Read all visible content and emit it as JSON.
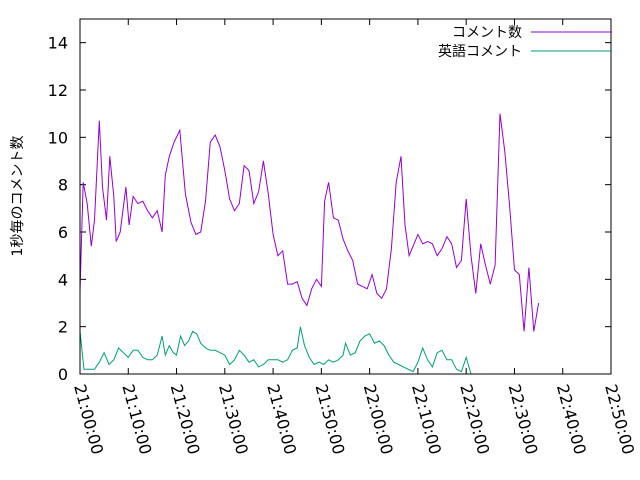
{
  "chart_data": {
    "type": "line",
    "title": "",
    "xlabel": "",
    "ylabel": "1秒毎のコメント数",
    "ylim": [
      0,
      15
    ],
    "yticks": [
      0,
      2,
      4,
      6,
      8,
      10,
      12,
      14
    ],
    "xlim": [
      "21:00:00",
      "22:50:00"
    ],
    "xticks": [
      "21:00:00",
      "21:10:00",
      "21:20:00",
      "21:30:00",
      "21:40:00",
      "21:50:00",
      "22:00:00",
      "22:10:00",
      "22:20:00",
      "22:30:00",
      "22:40:00",
      "22:50:00"
    ],
    "grid": false,
    "legend_position": "top-right",
    "series": [
      {
        "name": "コメント数",
        "color": "#9400d3",
        "points": [
          [
            "21:00:00",
            3.5
          ],
          [
            "21:00:40",
            8.1
          ],
          [
            "21:01:30",
            7.2
          ],
          [
            "21:02:20",
            5.4
          ],
          [
            "21:03:00",
            6.5
          ],
          [
            "21:04:00",
            10.7
          ],
          [
            "21:04:40",
            7.9
          ],
          [
            "21:05:30",
            6.5
          ],
          [
            "21:06:10",
            9.2
          ],
          [
            "21:07:00",
            7.5
          ],
          [
            "21:07:30",
            5.6
          ],
          [
            "21:08:20",
            6.0
          ],
          [
            "21:09:30",
            7.9
          ],
          [
            "21:10:10",
            6.3
          ],
          [
            "21:11:00",
            7.5
          ],
          [
            "21:12:00",
            7.2
          ],
          [
            "21:13:00",
            7.3
          ],
          [
            "21:14:00",
            6.9
          ],
          [
            "21:15:00",
            6.6
          ],
          [
            "21:16:00",
            6.9
          ],
          [
            "21:17:00",
            6.0
          ],
          [
            "21:17:40",
            8.4
          ],
          [
            "21:18:30",
            9.2
          ],
          [
            "21:19:30",
            9.8
          ],
          [
            "21:20:40",
            10.3
          ],
          [
            "21:21:50",
            7.6
          ],
          [
            "21:23:00",
            6.4
          ],
          [
            "21:24:00",
            5.9
          ],
          [
            "21:25:00",
            6.0
          ],
          [
            "21:26:00",
            7.3
          ],
          [
            "21:27:00",
            9.8
          ],
          [
            "21:28:00",
            10.1
          ],
          [
            "21:29:00",
            9.6
          ],
          [
            "21:30:00",
            8.6
          ],
          [
            "21:31:00",
            7.4
          ],
          [
            "21:32:00",
            6.9
          ],
          [
            "21:33:00",
            7.2
          ],
          [
            "21:34:00",
            8.8
          ],
          [
            "21:35:00",
            8.6
          ],
          [
            "21:36:00",
            7.2
          ],
          [
            "21:37:00",
            7.7
          ],
          [
            "21:38:00",
            9.0
          ],
          [
            "21:39:00",
            7.6
          ],
          [
            "21:40:00",
            5.9
          ],
          [
            "21:41:00",
            5.0
          ],
          [
            "21:42:00",
            5.2
          ],
          [
            "21:43:00",
            3.8
          ],
          [
            "21:44:00",
            3.8
          ],
          [
            "21:45:00",
            3.9
          ],
          [
            "21:46:00",
            3.2
          ],
          [
            "21:47:00",
            2.9
          ],
          [
            "21:48:00",
            3.6
          ],
          [
            "21:49:00",
            4.0
          ],
          [
            "21:50:00",
            3.7
          ],
          [
            "21:50:40",
            7.3
          ],
          [
            "21:51:30",
            8.1
          ],
          [
            "21:52:30",
            6.6
          ],
          [
            "21:53:30",
            6.5
          ],
          [
            "21:54:30",
            5.7
          ],
          [
            "21:55:30",
            5.2
          ],
          [
            "21:56:30",
            4.8
          ],
          [
            "21:57:30",
            3.8
          ],
          [
            "21:58:30",
            3.7
          ],
          [
            "21:59:30",
            3.6
          ],
          [
            "22:00:30",
            4.2
          ],
          [
            "22:01:30",
            3.4
          ],
          [
            "22:02:30",
            3.2
          ],
          [
            "22:03:30",
            3.6
          ],
          [
            "22:04:30",
            5.3
          ],
          [
            "22:05:30",
            8.1
          ],
          [
            "22:06:30",
            9.2
          ],
          [
            "22:07:20",
            6.3
          ],
          [
            "22:08:10",
            5.0
          ],
          [
            "22:09:00",
            5.4
          ],
          [
            "22:10:00",
            5.9
          ],
          [
            "22:11:00",
            5.5
          ],
          [
            "22:12:00",
            5.6
          ],
          [
            "22:13:00",
            5.5
          ],
          [
            "22:14:00",
            5.0
          ],
          [
            "22:15:00",
            5.3
          ],
          [
            "22:16:00",
            5.8
          ],
          [
            "22:17:00",
            5.5
          ],
          [
            "22:18:00",
            4.5
          ],
          [
            "22:19:00",
            4.8
          ],
          [
            "22:20:00",
            7.4
          ],
          [
            "22:21:00",
            5.0
          ],
          [
            "22:22:00",
            3.4
          ],
          [
            "22:23:00",
            5.5
          ],
          [
            "22:24:00",
            4.6
          ],
          [
            "22:25:00",
            3.8
          ],
          [
            "22:26:00",
            4.6
          ],
          [
            "22:27:00",
            11.0
          ],
          [
            "22:28:00",
            9.4
          ],
          [
            "22:29:00",
            7.1
          ],
          [
            "22:30:00",
            4.4
          ],
          [
            "22:31:00",
            4.2
          ],
          [
            "22:32:00",
            1.8
          ],
          [
            "22:33:00",
            4.5
          ],
          [
            "22:34:00",
            1.8
          ],
          [
            "22:35:00",
            3.0
          ]
        ]
      },
      {
        "name": "英語コメント",
        "color": "#009e73",
        "points": [
          [
            "21:00:00",
            1.8
          ],
          [
            "21:00:50",
            0.2
          ],
          [
            "21:02:00",
            0.2
          ],
          [
            "21:03:00",
            0.2
          ],
          [
            "21:04:00",
            0.5
          ],
          [
            "21:05:00",
            0.9
          ],
          [
            "21:06:00",
            0.4
          ],
          [
            "21:07:00",
            0.6
          ],
          [
            "21:08:00",
            1.1
          ],
          [
            "21:09:00",
            0.9
          ],
          [
            "21:10:00",
            0.7
          ],
          [
            "21:11:00",
            1.0
          ],
          [
            "21:12:00",
            1.0
          ],
          [
            "21:13:00",
            0.7
          ],
          [
            "21:14:00",
            0.6
          ],
          [
            "21:15:00",
            0.6
          ],
          [
            "21:16:00",
            0.8
          ],
          [
            "21:17:00",
            1.6
          ],
          [
            "21:17:40",
            0.8
          ],
          [
            "21:18:30",
            1.2
          ],
          [
            "21:19:20",
            0.9
          ],
          [
            "21:20:00",
            0.8
          ],
          [
            "21:20:50",
            1.6
          ],
          [
            "21:21:40",
            1.2
          ],
          [
            "21:22:30",
            1.4
          ],
          [
            "21:23:20",
            1.8
          ],
          [
            "21:24:10",
            1.7
          ],
          [
            "21:25:00",
            1.3
          ],
          [
            "21:26:00",
            1.1
          ],
          [
            "21:27:00",
            1.0
          ],
          [
            "21:28:00",
            1.0
          ],
          [
            "21:29:00",
            0.9
          ],
          [
            "21:30:00",
            0.8
          ],
          [
            "21:31:00",
            0.4
          ],
          [
            "21:32:00",
            0.6
          ],
          [
            "21:33:00",
            1.0
          ],
          [
            "21:34:00",
            0.8
          ],
          [
            "21:35:00",
            0.5
          ],
          [
            "21:36:00",
            0.6
          ],
          [
            "21:37:00",
            0.3
          ],
          [
            "21:38:00",
            0.4
          ],
          [
            "21:39:00",
            0.6
          ],
          [
            "21:40:00",
            0.6
          ],
          [
            "21:41:00",
            0.6
          ],
          [
            "21:42:00",
            0.5
          ],
          [
            "21:43:00",
            0.6
          ],
          [
            "21:44:00",
            1.0
          ],
          [
            "21:45:00",
            1.1
          ],
          [
            "21:45:40",
            2.0
          ],
          [
            "21:46:30",
            1.2
          ],
          [
            "21:47:30",
            0.7
          ],
          [
            "21:48:30",
            0.4
          ],
          [
            "21:49:30",
            0.5
          ],
          [
            "21:50:30",
            0.4
          ],
          [
            "21:51:30",
            0.6
          ],
          [
            "21:52:30",
            0.5
          ],
          [
            "21:53:30",
            0.6
          ],
          [
            "21:54:30",
            0.8
          ],
          [
            "21:55:00",
            1.3
          ],
          [
            "21:56:00",
            0.8
          ],
          [
            "21:57:00",
            0.9
          ],
          [
            "21:58:00",
            1.4
          ],
          [
            "21:59:00",
            1.6
          ],
          [
            "22:00:00",
            1.7
          ],
          [
            "22:01:00",
            1.3
          ],
          [
            "22:02:00",
            1.4
          ],
          [
            "22:03:00",
            1.2
          ],
          [
            "22:04:00",
            0.8
          ],
          [
            "22:05:00",
            0.5
          ],
          [
            "22:06:00",
            0.4
          ],
          [
            "22:07:00",
            0.3
          ],
          [
            "22:08:00",
            0.2
          ],
          [
            "22:09:00",
            0.1
          ],
          [
            "22:10:00",
            0.5
          ],
          [
            "22:11:00",
            1.1
          ],
          [
            "22:12:00",
            0.6
          ],
          [
            "22:13:00",
            0.3
          ],
          [
            "22:14:00",
            0.9
          ],
          [
            "22:15:00",
            1.0
          ],
          [
            "22:16:00",
            0.6
          ],
          [
            "22:17:00",
            0.6
          ],
          [
            "22:18:00",
            0.2
          ],
          [
            "22:19:00",
            0.1
          ],
          [
            "22:20:00",
            0.7
          ],
          [
            "22:21:00",
            0.0
          ]
        ]
      }
    ]
  }
}
